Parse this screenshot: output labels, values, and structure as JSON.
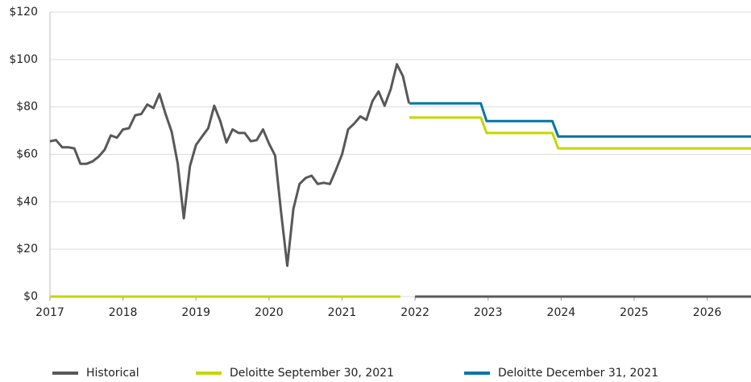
{
  "chart_data": {
    "type": "line",
    "xlim": [
      2017,
      2026.6
    ],
    "ylim": [
      0,
      120
    ],
    "xticks": [
      2017,
      2018,
      2019,
      2020,
      2021,
      2022,
      2023,
      2024,
      2025,
      2026
    ],
    "yticks": [
      {
        "value": 0,
        "label": "$0"
      },
      {
        "value": 20,
        "label": "$20"
      },
      {
        "value": 40,
        "label": "$40"
      },
      {
        "value": 60,
        "label": "$60"
      },
      {
        "value": 80,
        "label": "$80"
      },
      {
        "value": 100,
        "label": "$100"
      },
      {
        "value": 120,
        "label": "$120"
      }
    ],
    "grid": true,
    "legend": "bottom",
    "series": [
      {
        "name": "Historical",
        "color": "#58585a",
        "x": [
          2017.0,
          2017.083,
          2017.167,
          2017.25,
          2017.333,
          2017.417,
          2017.5,
          2017.583,
          2017.667,
          2017.75,
          2017.833,
          2017.917,
          2018.0,
          2018.083,
          2018.167,
          2018.25,
          2018.333,
          2018.417,
          2018.5,
          2018.583,
          2018.667,
          2018.75,
          2018.833,
          2018.917,
          2019.0,
          2019.083,
          2019.167,
          2019.25,
          2019.333,
          2019.417,
          2019.5,
          2019.583,
          2019.667,
          2019.75,
          2019.833,
          2019.917,
          2020.0,
          2020.083,
          2020.167,
          2020.25,
          2020.333,
          2020.417,
          2020.5,
          2020.583,
          2020.667,
          2020.75,
          2020.833,
          2020.917,
          2021.0,
          2021.083,
          2021.167,
          2021.25,
          2021.333,
          2021.417,
          2021.5,
          2021.583,
          2021.667,
          2021.75,
          2021.833,
          2021.917,
          2021.95,
          2022.0,
          2026.6
        ],
        "values": [
          65.5,
          66,
          63,
          63,
          62.5,
          56,
          56,
          57,
          59,
          62,
          68,
          67,
          70.5,
          71,
          76.5,
          77,
          81,
          79.5,
          85.5,
          77,
          69.5,
          56,
          33,
          55,
          64,
          67.5,
          71,
          80.5,
          74,
          65,
          70.5,
          69,
          69,
          65.5,
          66,
          70.5,
          64.5,
          59.5,
          35,
          13,
          37,
          47.5,
          50,
          51,
          47.5,
          48,
          47.5,
          53.5,
          60,
          70.5,
          73,
          76,
          74.5,
          82.5,
          86.5,
          80.5,
          87.5,
          98,
          93,
          81.5,
          null,
          0,
          0
        ]
      },
      {
        "name": "Deloitte September 30, 2021",
        "color": "#c4d600",
        "x": [
          2017.0,
          2021.8,
          2021.85,
          2021.92,
          2022.9,
          2022.98,
          2023.88,
          2023.96,
          2026.6
        ],
        "values": [
          0,
          0,
          null,
          75.5,
          75.5,
          69,
          69,
          62.5,
          62.5
        ]
      },
      {
        "name": "Deloitte December 31, 2021",
        "color": "#0076a8",
        "x": [
          2021.92,
          2022.9,
          2022.98,
          2023.88,
          2023.96,
          2026.6
        ],
        "values": [
          81.5,
          81.5,
          74,
          74,
          67.5,
          67.5
        ]
      }
    ]
  }
}
